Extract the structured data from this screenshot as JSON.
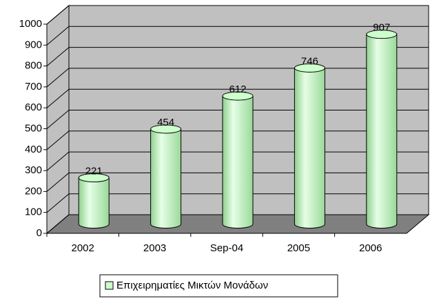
{
  "chart_data": {
    "type": "bar",
    "categories": [
      "2002",
      "2003",
      "Sep-04",
      "2005",
      "2006"
    ],
    "series": [
      {
        "name": "Επιχειρηματίες Μικτών Μονάδων",
        "color": "#ccffcc",
        "values": [
          221,
          454,
          612,
          746,
          907
        ]
      }
    ],
    "ylim": [
      0,
      1000
    ],
    "yticks": [
      0,
      100,
      200,
      300,
      400,
      500,
      600,
      700,
      800,
      900,
      1000
    ],
    "grid": true,
    "legend": "bottom"
  }
}
